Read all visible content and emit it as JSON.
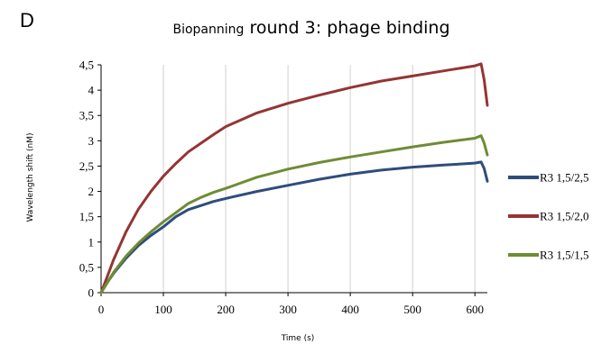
{
  "panel_letter": "D",
  "chart_data": {
    "type": "line",
    "title_prefix": "Biopanning",
    "title_main": "round 3: phage binding",
    "xlabel": "Time (s)",
    "ylabel": "Wavelength shift (nM)",
    "xlim": [
      0,
      620
    ],
    "ylim": [
      0,
      4.5
    ],
    "x_ticks": [
      0,
      100,
      200,
      300,
      400,
      500,
      600
    ],
    "x_tick_labels": [
      "0",
      "100",
      "200",
      "300",
      "400",
      "500",
      "600"
    ],
    "y_ticks": [
      0,
      0.5,
      1,
      1.5,
      2,
      2.5,
      3,
      3.5,
      4,
      4.5
    ],
    "y_tick_labels": [
      "0",
      "0,5",
      "1",
      "1,5",
      "2",
      "2,5",
      "3",
      "3,5",
      "4",
      "4,5"
    ],
    "grid": "vertical",
    "legend": "right",
    "series": [
      {
        "name": "R3 1,5/2,5",
        "color": "#2e4d7b",
        "x": [
          0,
          10,
          20,
          40,
          60,
          80,
          100,
          120,
          140,
          160,
          180,
          200,
          250,
          300,
          350,
          400,
          450,
          500,
          550,
          600,
          610,
          615,
          620
        ],
        "y": [
          0,
          0.2,
          0.38,
          0.68,
          0.93,
          1.13,
          1.3,
          1.5,
          1.64,
          1.72,
          1.8,
          1.86,
          2.0,
          2.12,
          2.24,
          2.34,
          2.42,
          2.48,
          2.52,
          2.56,
          2.58,
          2.45,
          2.2
        ]
      },
      {
        "name": "R3 1,5/2,0",
        "color": "#943534",
        "x": [
          0,
          10,
          20,
          40,
          60,
          80,
          100,
          120,
          140,
          160,
          180,
          200,
          250,
          300,
          350,
          400,
          450,
          500,
          550,
          600,
          610,
          615,
          620
        ],
        "y": [
          0,
          0.32,
          0.65,
          1.2,
          1.65,
          2.0,
          2.3,
          2.55,
          2.78,
          2.95,
          3.12,
          3.28,
          3.55,
          3.74,
          3.9,
          4.05,
          4.18,
          4.28,
          4.38,
          4.48,
          4.52,
          4.2,
          3.7
        ]
      },
      {
        "name": "R3 1,5/1,5",
        "color": "#6e8c35",
        "x": [
          0,
          10,
          20,
          40,
          60,
          80,
          100,
          120,
          140,
          160,
          180,
          200,
          250,
          300,
          350,
          400,
          450,
          500,
          550,
          600,
          610,
          615,
          620
        ],
        "y": [
          0,
          0.2,
          0.4,
          0.72,
          0.98,
          1.2,
          1.4,
          1.58,
          1.76,
          1.88,
          1.98,
          2.06,
          2.28,
          2.44,
          2.57,
          2.68,
          2.78,
          2.88,
          2.97,
          3.05,
          3.1,
          2.95,
          2.72
        ]
      }
    ]
  }
}
